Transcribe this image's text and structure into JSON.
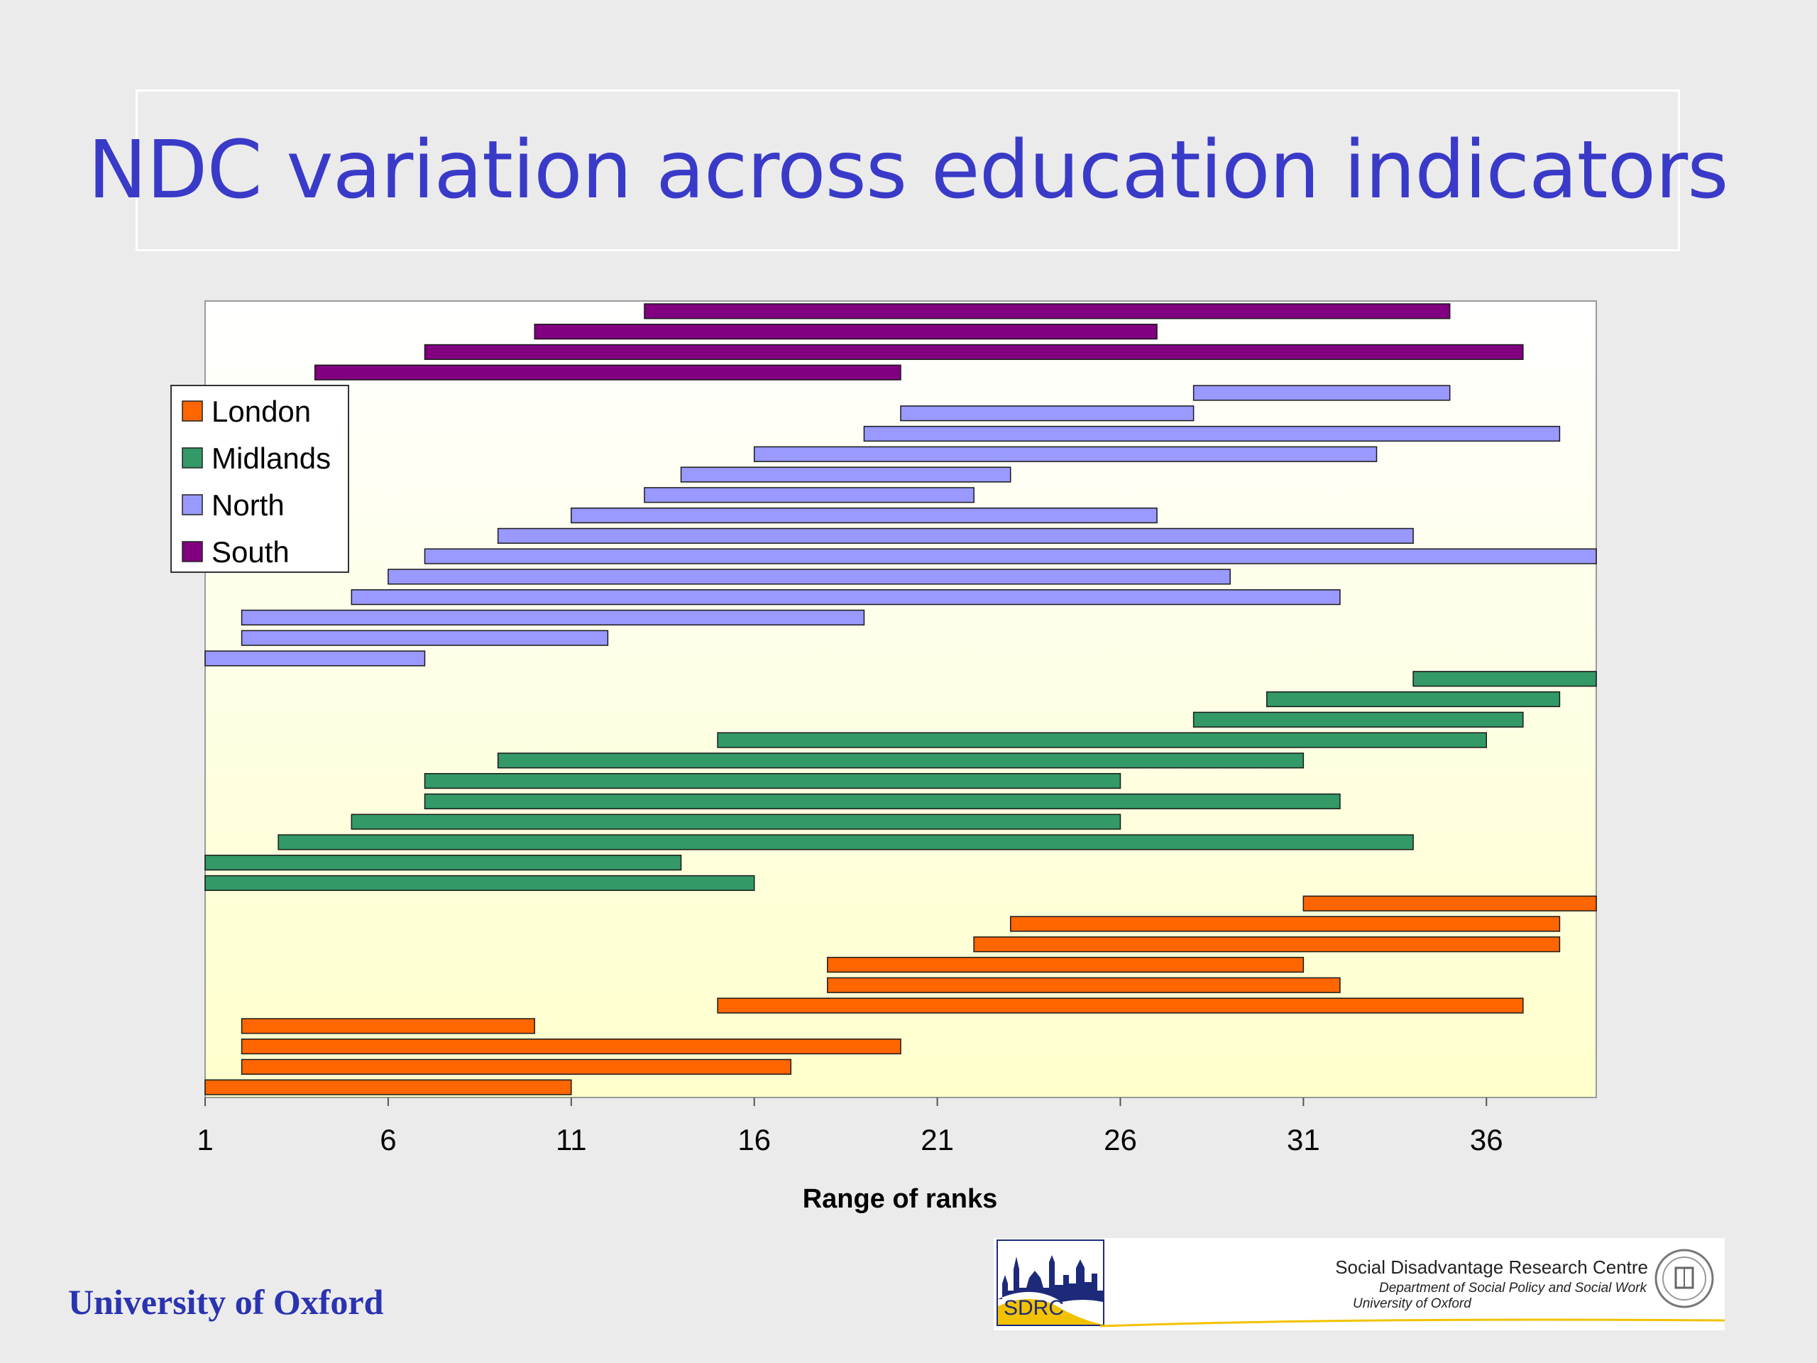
{
  "slide": {
    "title": "NDC variation across education indicators",
    "footer_left": "University of Oxford"
  },
  "sdrc": {
    "logo_text": "SDRC",
    "centre_name": "Social Disadvantage Research Centre",
    "department": "Department of Social Policy and Social Work",
    "university": "University of Oxford"
  },
  "chart_data": {
    "type": "bar",
    "orientation": "horizontal-range",
    "title": "",
    "xlabel": "Range of ranks",
    "ylabel": "",
    "xlim": [
      1,
      39
    ],
    "xticks": [
      1,
      6,
      11,
      16,
      21,
      26,
      31,
      36
    ],
    "grid": false,
    "legend_position": "upper-left",
    "series": [
      {
        "name": "London",
        "color": "#ff6600",
        "ranges": [
          [
            1,
            11
          ],
          [
            2,
            17
          ],
          [
            2,
            20
          ],
          [
            2,
            10
          ],
          [
            15,
            37
          ],
          [
            18,
            32
          ],
          [
            18,
            31
          ],
          [
            22,
            38
          ],
          [
            23,
            38
          ],
          [
            31,
            39
          ]
        ]
      },
      {
        "name": "Midlands",
        "color": "#339966",
        "ranges": [
          [
            1,
            16
          ],
          [
            1,
            14
          ],
          [
            3,
            34
          ],
          [
            5,
            26
          ],
          [
            7,
            32
          ],
          [
            7,
            26
          ],
          [
            9,
            31
          ],
          [
            15,
            36
          ],
          [
            28,
            37
          ],
          [
            30,
            38
          ],
          [
            34,
            39
          ]
        ]
      },
      {
        "name": "North",
        "color": "#9999ff",
        "ranges": [
          [
            1,
            7
          ],
          [
            2,
            12
          ],
          [
            2,
            19
          ],
          [
            5,
            32
          ],
          [
            6,
            29
          ],
          [
            7,
            39
          ],
          [
            9,
            34
          ],
          [
            11,
            27
          ],
          [
            13,
            22
          ],
          [
            14,
            23
          ],
          [
            16,
            33
          ],
          [
            19,
            38
          ],
          [
            20,
            28
          ],
          [
            28,
            35
          ]
        ]
      },
      {
        "name": "South",
        "color": "#800080",
        "ranges": [
          [
            4,
            20
          ],
          [
            7,
            37
          ],
          [
            10,
            27
          ],
          [
            13,
            35
          ]
        ]
      }
    ]
  }
}
